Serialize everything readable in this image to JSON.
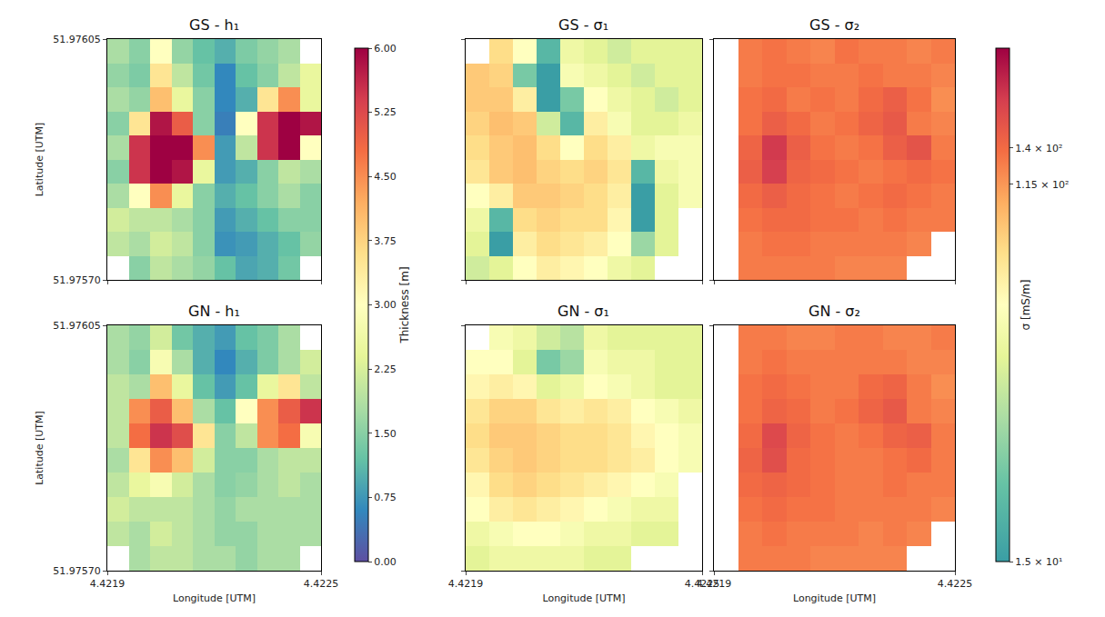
{
  "chart_data": {
    "type": "heatmap",
    "xlabel": "Longitude [UTM]",
    "ylabel": "Latitude [UTM]",
    "xlim": [
      4.4219,
      4.4225
    ],
    "xticks": [
      4.4219,
      4.4225
    ],
    "ylim": [
      51.9757,
      51.97605
    ],
    "yticks": [
      {
        "value": 51.9757,
        "label": "51.97570"
      },
      {
        "value": 51.97605,
        "label": "51.97605"
      }
    ],
    "grid": false,
    "cell_x": [
      4.42193,
      4.42199,
      4.42205,
      4.42211,
      4.42217,
      4.42223,
      4.42229,
      4.42235,
      4.42241,
      4.42247
    ],
    "cell_y": [
      51.9760325,
      51.9759975,
      51.9759625,
      51.9759275,
      51.9758925,
      51.9758575,
      51.9758225,
      51.9757875,
      51.9757525,
      51.9757175
    ],
    "colorbars": [
      {
        "title": "Thickness [m]",
        "range": [
          0,
          6
        ],
        "ticks": [
          {
            "value": 0,
            "label": "0.00"
          },
          {
            "value": 0.75,
            "label": "0.75"
          },
          {
            "value": 1.5,
            "label": "1.50"
          },
          {
            "value": 2.25,
            "label": "2.25"
          },
          {
            "value": 3,
            "label": "3.00"
          },
          {
            "value": 3.75,
            "label": "3.75"
          },
          {
            "value": 4.5,
            "label": "4.50"
          },
          {
            "value": 5.25,
            "label": "5.25"
          },
          {
            "value": 6,
            "label": "6.00"
          }
        ]
      },
      {
        "title": "σ [mS/m]",
        "range": [
          15,
          240
        ],
        "log": true,
        "ticks": [
          {
            "value": 15,
            "label": "1.5 × 10¹"
          },
          {
            "value": 115,
            "label": "1.15 × 10²"
          },
          {
            "value": 140,
            "label": "1.4 × 10²"
          }
        ]
      }
    ],
    "panels": [
      {
        "title": "GS - h₁",
        "colorbar": 0,
        "cells": [
          [
            1.8,
            1.5,
            3.0,
            1.6,
            1.2,
            1.0,
            1.4,
            1.6,
            1.8,
            null
          ],
          [
            1.6,
            1.4,
            3.5,
            2.0,
            1.3,
            0.6,
            1.2,
            1.5,
            2.0,
            2.5
          ],
          [
            1.8,
            1.6,
            4.0,
            2.5,
            1.5,
            0.6,
            1.0,
            3.5,
            4.5,
            2.5
          ],
          [
            1.5,
            3.5,
            5.8,
            5.0,
            1.5,
            0.5,
            3.0,
            5.5,
            6.0,
            5.8
          ],
          [
            1.8,
            5.5,
            6.0,
            6.0,
            4.5,
            0.8,
            2.0,
            5.5,
            6.0,
            3.0
          ],
          [
            1.5,
            5.5,
            6.0,
            5.8,
            2.5,
            0.8,
            1.0,
            1.5,
            2.0,
            1.8
          ],
          [
            1.8,
            3.0,
            4.5,
            2.5,
            1.5,
            1.0,
            1.2,
            1.5,
            1.8,
            1.5
          ],
          [
            2.2,
            2.0,
            2.0,
            1.8,
            1.5,
            0.8,
            1.0,
            1.2,
            1.5,
            1.5
          ],
          [
            2.0,
            1.8,
            2.2,
            2.0,
            1.5,
            0.7,
            0.8,
            1.0,
            1.2,
            1.6
          ],
          [
            null,
            1.5,
            2.0,
            1.8,
            1.6,
            1.2,
            0.9,
            1.0,
            1.3,
            null
          ]
        ]
      },
      {
        "title": "GS - σ₁",
        "colorbar": 1,
        "cells": [
          [
            null,
            80,
            60,
            20,
            50,
            45,
            40,
            45,
            45,
            45
          ],
          [
            90,
            85,
            25,
            15,
            55,
            50,
            45,
            40,
            45,
            45
          ],
          [
            90,
            90,
            70,
            15,
            25,
            60,
            50,
            45,
            40,
            45
          ],
          [
            85,
            95,
            90,
            40,
            20,
            70,
            55,
            45,
            45,
            50
          ],
          [
            80,
            90,
            95,
            80,
            60,
            80,
            70,
            50,
            55,
            55
          ],
          [
            75,
            90,
            95,
            85,
            80,
            85,
            75,
            20,
            50,
            55
          ],
          [
            60,
            70,
            90,
            90,
            85,
            80,
            70,
            15,
            45,
            55
          ],
          [
            50,
            20,
            80,
            85,
            80,
            80,
            65,
            15,
            45,
            null
          ],
          [
            45,
            15,
            70,
            80,
            75,
            70,
            60,
            30,
            45,
            null
          ],
          [
            40,
            45,
            60,
            70,
            65,
            60,
            50,
            45,
            null,
            null
          ]
        ]
      },
      {
        "title": "GS - σ₂",
        "colorbar": 1,
        "cells": [
          [
            null,
            130,
            135,
            130,
            125,
            135,
            130,
            130,
            125,
            130
          ],
          [
            null,
            130,
            135,
            135,
            130,
            130,
            135,
            130,
            130,
            125
          ],
          [
            null,
            135,
            140,
            130,
            135,
            130,
            140,
            150,
            135,
            120
          ],
          [
            null,
            135,
            150,
            140,
            130,
            135,
            145,
            155,
            130,
            125
          ],
          [
            null,
            145,
            185,
            150,
            135,
            130,
            135,
            150,
            160,
            130
          ],
          [
            null,
            150,
            180,
            145,
            140,
            135,
            130,
            135,
            140,
            135
          ],
          [
            null,
            140,
            150,
            140,
            135,
            130,
            135,
            140,
            135,
            130
          ],
          [
            null,
            135,
            140,
            140,
            135,
            135,
            130,
            135,
            130,
            130
          ],
          [
            null,
            130,
            135,
            135,
            130,
            130,
            130,
            130,
            125,
            null
          ],
          [
            null,
            130,
            130,
            130,
            130,
            125,
            125,
            125,
            null,
            null
          ]
        ]
      },
      {
        "title": "GN - h₁",
        "colorbar": 0,
        "cells": [
          [
            1.8,
            1.6,
            2.2,
            1.3,
            1.0,
            0.8,
            1.2,
            1.4,
            1.8,
            null
          ],
          [
            1.8,
            1.5,
            2.8,
            1.8,
            1.0,
            0.6,
            1.0,
            1.4,
            1.8,
            2.2
          ],
          [
            2.0,
            1.8,
            4.0,
            2.5,
            1.2,
            0.8,
            1.2,
            2.5,
            3.5,
            2.0
          ],
          [
            2.0,
            4.5,
            5.0,
            4.0,
            1.8,
            1.2,
            3.0,
            4.5,
            5.0,
            5.5
          ],
          [
            2.0,
            4.8,
            5.5,
            5.2,
            3.5,
            1.5,
            2.0,
            4.5,
            4.8,
            2.8
          ],
          [
            1.8,
            3.5,
            4.5,
            4.0,
            2.2,
            1.5,
            1.5,
            1.8,
            2.0,
            2.0
          ],
          [
            2.0,
            2.5,
            2.8,
            2.2,
            1.8,
            1.5,
            1.6,
            1.8,
            2.0,
            1.8
          ],
          [
            2.2,
            2.0,
            2.0,
            2.0,
            1.8,
            1.6,
            1.8,
            1.8,
            1.8,
            1.8
          ],
          [
            2.0,
            1.8,
            2.2,
            2.0,
            1.8,
            1.6,
            1.6,
            1.8,
            1.8,
            1.8
          ],
          [
            null,
            1.8,
            2.0,
            2.0,
            1.8,
            1.8,
            1.6,
            1.8,
            1.8,
            null
          ]
        ]
      },
      {
        "title": "GN - σ₁",
        "colorbar": 1,
        "cells": [
          [
            null,
            55,
            50,
            40,
            35,
            50,
            45,
            45,
            45,
            45
          ],
          [
            60,
            60,
            45,
            25,
            30,
            55,
            50,
            50,
            45,
            45
          ],
          [
            65,
            70,
            65,
            45,
            50,
            60,
            55,
            50,
            45,
            45
          ],
          [
            75,
            85,
            85,
            75,
            70,
            75,
            70,
            60,
            55,
            50
          ],
          [
            80,
            90,
            90,
            85,
            80,
            80,
            75,
            65,
            60,
            55
          ],
          [
            75,
            85,
            90,
            85,
            80,
            80,
            75,
            70,
            60,
            55
          ],
          [
            65,
            80,
            85,
            80,
            75,
            70,
            65,
            60,
            55,
            null
          ],
          [
            60,
            70,
            75,
            70,
            65,
            60,
            55,
            50,
            50,
            null
          ],
          [
            50,
            55,
            60,
            60,
            55,
            50,
            50,
            45,
            45,
            null
          ],
          [
            45,
            50,
            50,
            50,
            50,
            45,
            45,
            null,
            null,
            null
          ]
        ]
      },
      {
        "title": "GN - σ₂",
        "colorbar": 1,
        "cells": [
          [
            null,
            130,
            130,
            125,
            125,
            130,
            130,
            125,
            125,
            130
          ],
          [
            null,
            130,
            135,
            130,
            130,
            130,
            130,
            130,
            125,
            125
          ],
          [
            null,
            135,
            140,
            135,
            130,
            130,
            140,
            145,
            130,
            120
          ],
          [
            null,
            135,
            145,
            140,
            130,
            135,
            145,
            155,
            130,
            125
          ],
          [
            null,
            140,
            170,
            145,
            135,
            130,
            135,
            145,
            150,
            130
          ],
          [
            null,
            145,
            165,
            140,
            135,
            130,
            130,
            135,
            140,
            130
          ],
          [
            null,
            140,
            145,
            140,
            135,
            130,
            130,
            135,
            130,
            130
          ],
          [
            null,
            135,
            140,
            135,
            135,
            130,
            130,
            130,
            130,
            125
          ],
          [
            null,
            130,
            135,
            130,
            130,
            130,
            125,
            130,
            125,
            null
          ],
          [
            null,
            130,
            130,
            130,
            125,
            125,
            125,
            125,
            null,
            null
          ]
        ]
      }
    ]
  }
}
